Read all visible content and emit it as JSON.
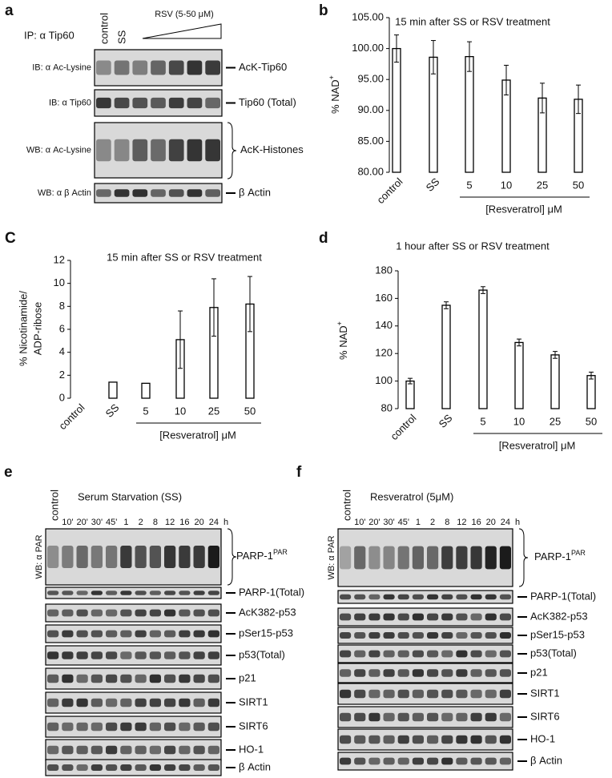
{
  "panels": {
    "a": {
      "letter": "a",
      "ip_label": "IP: α Tip60",
      "lanes": [
        "control",
        "SS"
      ],
      "treatment": "RSV (5-50 μM)",
      "rows": [
        {
          "left": "IB: α Ac-Lysine",
          "right": "AcK-Tip60"
        },
        {
          "left": "IB: α Tip60",
          "right": "Tip60 (Total)"
        },
        {
          "left": "WB: α Ac-Lysine",
          "right": "AcK-Histones"
        },
        {
          "left": "WB: α β Actin",
          "right": "β Actin"
        }
      ]
    },
    "e": {
      "letter": "e",
      "title": "Serum Starvation (SS)",
      "control": "control",
      "times": [
        "10'",
        "20'",
        "30'",
        "45'",
        "1",
        "2",
        "8",
        "12",
        "16",
        "20",
        "24"
      ],
      "unit": "h",
      "left": "WB: α PAR",
      "rows": [
        {
          "label": "PARP-1",
          "sup": "PAR"
        },
        {
          "label": "PARP-1(Total)"
        },
        {
          "label": "AcK382-p53"
        },
        {
          "label": "pSer15-p53"
        },
        {
          "label": "p53(Total)"
        },
        {
          "label": "p21"
        },
        {
          "label": "SIRT1"
        },
        {
          "label": "SIRT6"
        },
        {
          "label": "HO-1"
        },
        {
          "label": "β Actin"
        }
      ]
    },
    "f": {
      "letter": "f",
      "title": "Resveratrol (5μM)",
      "control": "control",
      "times": [
        "10'",
        "20'",
        "30'",
        "45'",
        "1",
        "2",
        "8",
        "12",
        "16",
        "20",
        "24"
      ],
      "unit": "h",
      "left": "WB: α PAR",
      "rows": [
        {
          "label": "PARP-1",
          "sup": "PAR"
        },
        {
          "label": "PARP-1(Total)"
        },
        {
          "label": "AcK382-p53"
        },
        {
          "label": "pSer15-p53"
        },
        {
          "label": "p53(Total)"
        },
        {
          "label": "p21"
        },
        {
          "label": "SIRT1"
        },
        {
          "label": "SIRT6"
        },
        {
          "label": "HO-1"
        },
        {
          "label": "β Actin"
        }
      ]
    }
  },
  "chart_data": [
    {
      "type": "bar",
      "panel_label": "b",
      "title": "15 min after SS or RSV treatment",
      "ylabel": "% NAD",
      "ylabel_superscript": "+",
      "xlabel": "[Resveratrol] μM",
      "categories": [
        "control",
        "SS",
        "5",
        "10",
        "25",
        "50"
      ],
      "values": [
        100.0,
        98.6,
        98.7,
        94.9,
        92.0,
        91.8
      ],
      "errors": [
        2.2,
        2.7,
        2.4,
        2.4,
        2.4,
        2.3
      ],
      "ylim": [
        80,
        105
      ],
      "yticks": [
        {
          "value": 80,
          "label": "80.00"
        },
        {
          "value": 85,
          "label": "85.00"
        },
        {
          "value": 90,
          "label": "90.00"
        },
        {
          "value": 95,
          "label": "95.00"
        },
        {
          "value": 100,
          "label": "100.00"
        },
        {
          "value": 105,
          "label": "105.00"
        }
      ],
      "color": "#ffffff"
    },
    {
      "type": "bar",
      "panel_label": "C",
      "title": "15 min after SS or RSV treatment",
      "ylabel": [
        "% Nicotinamide/",
        "ADP-ribose"
      ],
      "xlabel": "[Resveratrol] μM",
      "categories": [
        "control",
        "SS",
        "5",
        "10",
        "25",
        "50"
      ],
      "values": [
        0,
        1.4,
        1.3,
        5.1,
        7.9,
        8.2
      ],
      "errors": [
        null,
        null,
        null,
        2.5,
        2.5,
        2.4
      ],
      "ylim": [
        0,
        12
      ],
      "yticks": [
        0,
        2,
        4,
        6,
        8,
        10,
        12
      ],
      "color": "#ffffff"
    },
    {
      "type": "bar",
      "panel_label": "d",
      "title": "1 hour after SS or RSV treatment",
      "ylabel": "% NAD",
      "ylabel_superscript": "+",
      "xlabel": "[Resveratrol] μM",
      "categories": [
        "control",
        "SS",
        "5",
        "10",
        "25",
        "50"
      ],
      "values": [
        100,
        155,
        166,
        128,
        119,
        104
      ],
      "errors": [
        2,
        2.5,
        2.5,
        2.5,
        2.5,
        2.5
      ],
      "ylim": [
        80,
        180
      ],
      "yticks": [
        80,
        100,
        120,
        140,
        160,
        180
      ],
      "color": "#ffffff"
    }
  ]
}
